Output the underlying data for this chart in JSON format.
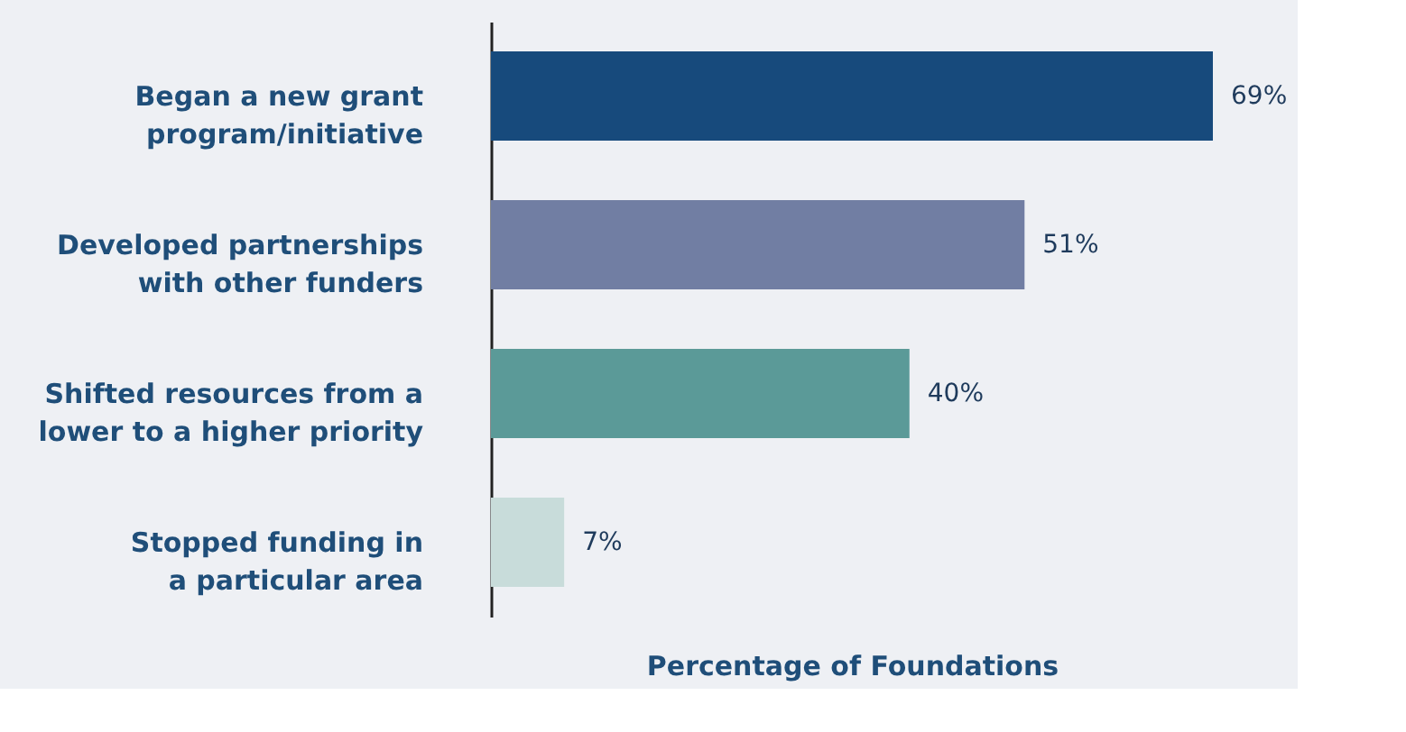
{
  "chart_data": {
    "type": "bar",
    "orientation": "horizontal",
    "xlabel": "Percentage of Foundations",
    "categories": [
      "Began a new grant\nprogram/initiative",
      "Developed partnerships\nwith other funders",
      "Shifted resources from a\nlower to a higher priority",
      "Stopped funding in\na particular area"
    ],
    "values": [
      69,
      51,
      40,
      7
    ],
    "colors": [
      "#174a7c",
      "#717ea3",
      "#5b9a98",
      "#c8dcda"
    ],
    "value_labels": [
      "69%",
      "51%",
      "40%",
      "7%"
    ],
    "tick_labels": "y",
    "grid": false
  }
}
